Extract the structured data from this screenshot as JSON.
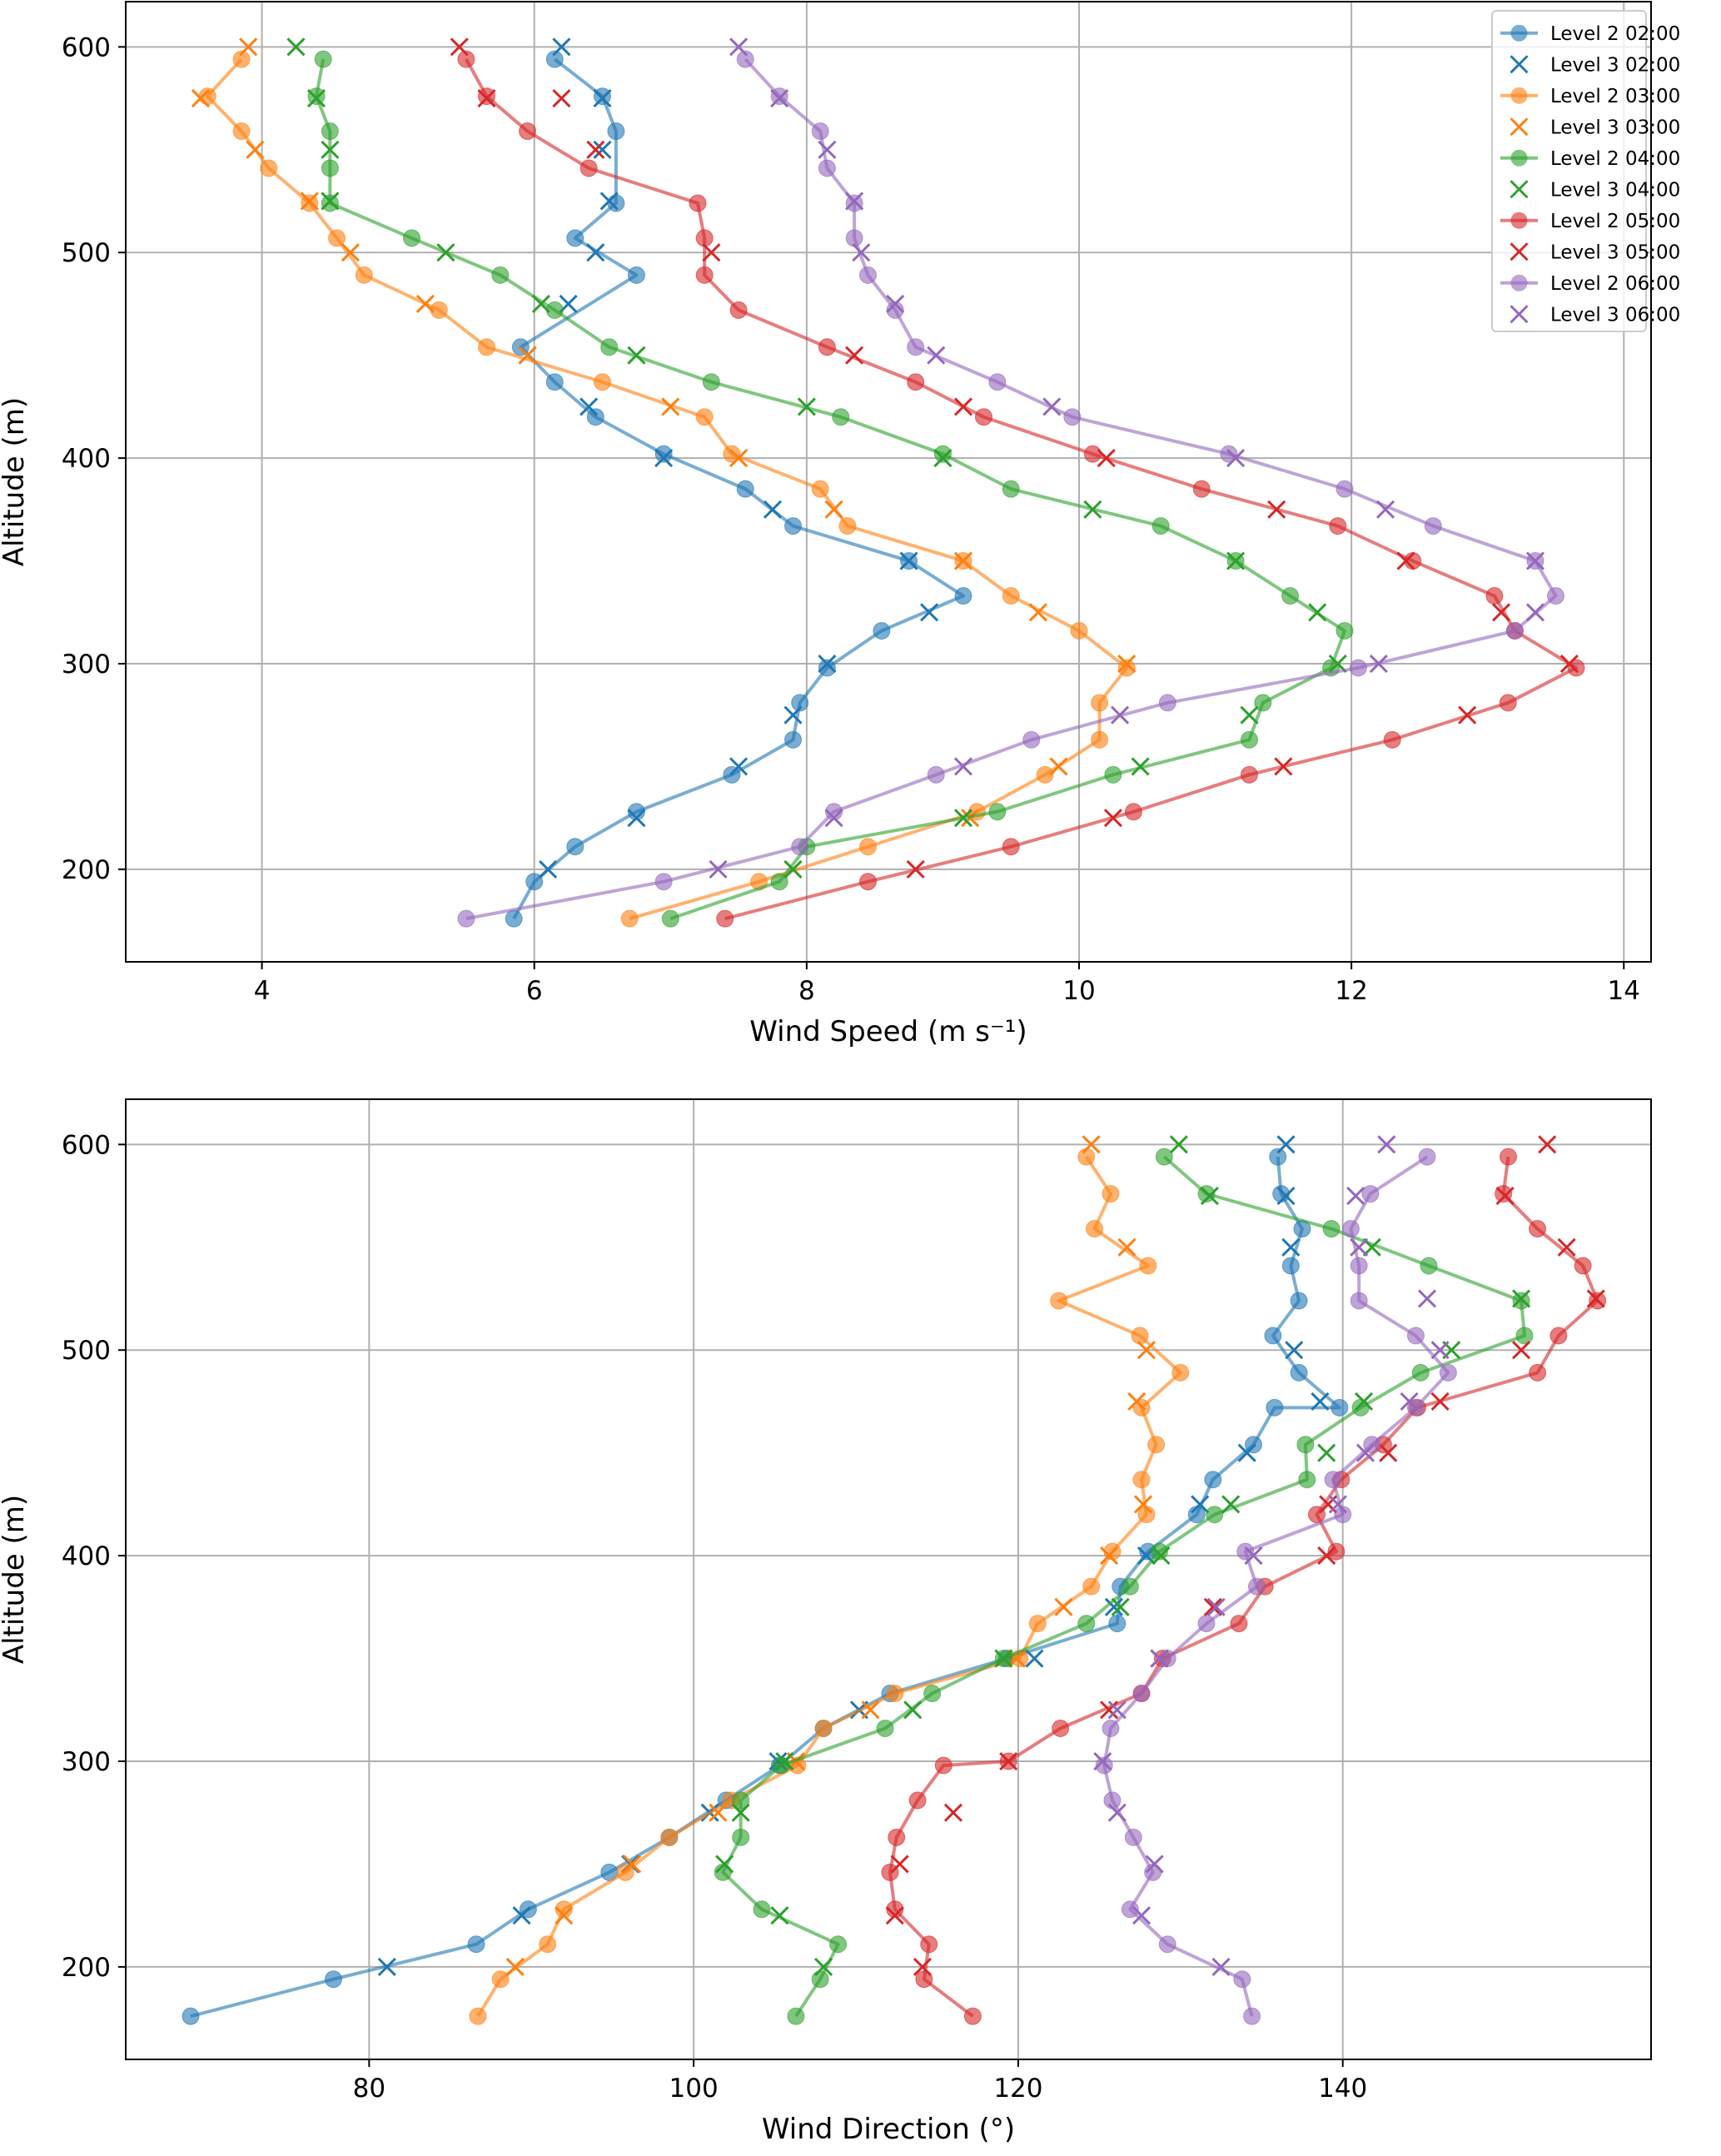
{
  "colors": {
    "02:00": "#1f77b4",
    "03:00": "#ff7f0e",
    "04:00": "#2ca02c",
    "05:00": "#d62728",
    "06:00": "#9467bd"
  },
  "chart_data": [
    {
      "type": "line",
      "xlabel": "Wind Speed (m s⁻¹)",
      "ylabel": "Altitude (m)",
      "xlim": [
        3.0,
        14.2
      ],
      "ylim": [
        155,
        622
      ],
      "xticks": [
        4,
        6,
        8,
        10,
        12,
        14
      ],
      "yticks": [
        200,
        300,
        400,
        500,
        600
      ],
      "grid": true,
      "legend_position": "top-right",
      "series": [
        {
          "name": "Level 2 02:00",
          "time": "02:00",
          "kind": "level2",
          "x": [
            5.85,
            6.0,
            6.3,
            6.75,
            7.45,
            7.9,
            7.95,
            8.15,
            8.55,
            9.15,
            8.75,
            7.9,
            7.55,
            6.95,
            6.45,
            6.15,
            5.9,
            6.75,
            6.3,
            6.6,
            6.6,
            6.5,
            6.15
          ],
          "y": [
            176,
            194,
            211,
            228,
            246,
            263,
            281,
            298,
            316,
            333,
            350,
            367,
            385,
            402,
            420,
            437,
            454,
            489,
            507,
            524,
            559,
            576,
            594
          ]
        },
        {
          "name": "Level 3 02:00",
          "time": "02:00",
          "kind": "level3",
          "x": [
            6.1,
            6.75,
            7.5,
            7.9,
            8.15,
            8.9,
            8.75,
            7.75,
            6.95,
            6.4,
            5.95,
            6.25,
            6.45,
            6.55,
            6.5,
            6.5,
            6.2
          ],
          "y": [
            200,
            225,
            250,
            275,
            300,
            325,
            350,
            375,
            400,
            425,
            450,
            475,
            500,
            525,
            550,
            575,
            600
          ]
        },
        {
          "name": "Level 2 03:00",
          "time": "03:00",
          "kind": "level2",
          "x": [
            6.7,
            7.65,
            8.45,
            9.25,
            9.75,
            10.15,
            10.15,
            10.35,
            10.0,
            9.5,
            9.15,
            8.3,
            8.1,
            7.45,
            7.25,
            6.5,
            5.65,
            5.3,
            4.75,
            4.55,
            4.35,
            4.05,
            3.85,
            3.6,
            3.85
          ],
          "y": [
            176,
            194,
            211,
            228,
            246,
            263,
            281,
            298,
            316,
            333,
            350,
            367,
            385,
            402,
            420,
            437,
            454,
            472,
            489,
            507,
            524,
            541,
            559,
            576,
            594
          ]
        },
        {
          "name": "Level 3 03:00",
          "time": "03:00",
          "kind": "level3",
          "x": [
            7.9,
            9.2,
            9.85,
            10.35,
            9.7,
            9.15,
            8.2,
            7.5,
            7.0,
            5.95,
            5.2,
            4.65,
            4.35,
            3.95,
            3.55,
            3.9
          ],
          "y": [
            200,
            225,
            250,
            300,
            325,
            350,
            375,
            400,
            425,
            450,
            475,
            500,
            525,
            550,
            575,
            600
          ]
        },
        {
          "name": "Level 2 04:00",
          "time": "04:00",
          "kind": "level2",
          "x": [
            7.0,
            7.8,
            8.0,
            9.4,
            10.25,
            11.25,
            11.35,
            11.85,
            11.95,
            11.55,
            11.15,
            10.6,
            9.5,
            9.0,
            8.25,
            7.3,
            6.55,
            6.15,
            5.75,
            5.1,
            4.5,
            4.5,
            4.5,
            4.4,
            4.45
          ],
          "y": [
            176,
            194,
            211,
            228,
            246,
            263,
            281,
            298,
            316,
            333,
            350,
            367,
            385,
            402,
            420,
            437,
            454,
            472,
            489,
            507,
            524,
            541,
            559,
            576,
            594
          ]
        },
        {
          "name": "Level 3 04:00",
          "time": "04:00",
          "kind": "level3",
          "x": [
            7.9,
            9.15,
            10.45,
            11.25,
            11.9,
            11.75,
            11.15,
            10.1,
            9.0,
            8.0,
            6.75,
            6.05,
            5.35,
            4.5,
            4.5,
            4.4,
            4.25
          ],
          "y": [
            200,
            225,
            250,
            275,
            300,
            325,
            350,
            375,
            400,
            425,
            450,
            475,
            500,
            525,
            550,
            575,
            600
          ]
        },
        {
          "name": "Level 2 05:00",
          "time": "05:00",
          "kind": "level2",
          "x": [
            7.4,
            8.45,
            9.5,
            10.4,
            11.25,
            12.3,
            13.15,
            13.65,
            13.2,
            13.05,
            12.45,
            11.9,
            10.9,
            10.1,
            9.3,
            8.8,
            8.15,
            7.5,
            7.25,
            7.25,
            7.2,
            6.4,
            5.95,
            5.65,
            5.5
          ],
          "y": [
            176,
            194,
            211,
            228,
            246,
            263,
            281,
            298,
            316,
            333,
            350,
            367,
            385,
            402,
            420,
            437,
            454,
            472,
            489,
            507,
            524,
            541,
            559,
            576,
            594
          ]
        },
        {
          "name": "Level 3 05:00",
          "time": "05:00",
          "kind": "level3",
          "x": [
            8.8,
            10.25,
            11.5,
            12.85,
            13.6,
            13.1,
            12.4,
            11.45,
            10.2,
            9.15,
            8.35,
            7.3,
            6.45,
            6.2,
            5.65,
            5.45
          ],
          "y": [
            200,
            225,
            250,
            275,
            300,
            325,
            350,
            375,
            400,
            425,
            450,
            500,
            550,
            575,
            575,
            600
          ]
        },
        {
          "name": "Level 2 06:00",
          "time": "06:00",
          "kind": "level2",
          "x": [
            5.5,
            6.95,
            7.95,
            8.2,
            8.95,
            9.65,
            10.65,
            12.05,
            13.2,
            13.5,
            13.35,
            12.6,
            11.95,
            11.1,
            9.95,
            9.4,
            8.8,
            8.65,
            8.45,
            8.35,
            8.35,
            8.15,
            8.1,
            7.8,
            7.55
          ],
          "y": [
            176,
            194,
            211,
            228,
            246,
            263,
            281,
            298,
            316,
            333,
            350,
            367,
            385,
            402,
            420,
            437,
            454,
            472,
            489,
            507,
            524,
            541,
            559,
            576,
            594
          ]
        },
        {
          "name": "Level 3 06:00",
          "time": "06:00",
          "kind": "level3",
          "x": [
            7.35,
            8.2,
            9.15,
            10.3,
            12.2,
            13.35,
            13.35,
            12.25,
            11.15,
            9.8,
            8.95,
            8.65,
            8.4,
            8.35,
            8.15,
            7.8,
            7.5
          ],
          "y": [
            200,
            225,
            250,
            275,
            300,
            325,
            350,
            375,
            400,
            425,
            450,
            475,
            500,
            525,
            550,
            575,
            600
          ]
        }
      ]
    },
    {
      "type": "line",
      "xlabel": "Wind Direction (°)",
      "ylabel": "Altitude (m)",
      "xlim": [
        65.0,
        159.0
      ],
      "ylim": [
        155,
        622
      ],
      "xticks": [
        80,
        100,
        120,
        140
      ],
      "yticks": [
        200,
        300,
        400,
        500,
        600
      ],
      "grid": true,
      "series": [
        {
          "name": "Level 2 02:00",
          "time": "02:00",
          "kind": "level2",
          "x": [
            69,
            77.8,
            86.6,
            89.8,
            94.8,
            98.5,
            102.0,
            105.3,
            108.0,
            112.1,
            119.3,
            126.1,
            126.3,
            128.0,
            131.0,
            132.0,
            134.5,
            135.8,
            139.8,
            137.3,
            135.7,
            137.3,
            136.8,
            137.5,
            136.2,
            136.0
          ],
          "y": [
            176,
            194,
            211,
            228,
            246,
            263,
            281,
            298,
            316,
            333,
            350,
            367,
            385,
            402,
            420,
            437,
            454,
            472,
            472,
            489,
            507,
            524,
            541,
            559,
            576,
            594
          ]
        },
        {
          "name": "Level 3 02:00",
          "time": "02:00",
          "kind": "level3",
          "x": [
            81.1,
            89.4,
            96.1,
            101.0,
            105.2,
            110.2,
            121.0,
            125.9,
            127.9,
            131.2,
            134.1,
            138.6,
            137.0,
            136.8,
            136.5,
            136.5
          ],
          "y": [
            200,
            225,
            250,
            275,
            300,
            325,
            350,
            375,
            400,
            425,
            450,
            475,
            500,
            550,
            575,
            600
          ]
        },
        {
          "name": "Level 2 03:00",
          "time": "03:00",
          "kind": "level2",
          "x": [
            86.7,
            88.1,
            91.0,
            92.0,
            95.8,
            98.5,
            102.3,
            106.4,
            108.0,
            112.4,
            120.1,
            121.2,
            124.5,
            125.8,
            127.9,
            127.6,
            128.5,
            127.6,
            130.0,
            127.5,
            122.5,
            128.0,
            124.7,
            125.7,
            124.2
          ],
          "y": [
            176,
            194,
            211,
            228,
            246,
            263,
            281,
            298,
            316,
            333,
            350,
            367,
            385,
            402,
            420,
            437,
            454,
            472,
            489,
            507,
            524,
            541,
            559,
            576,
            594
          ]
        },
        {
          "name": "Level 3 03:00",
          "time": "03:00",
          "kind": "level3",
          "x": [
            89.0,
            92.0,
            96.2,
            101.5,
            106.3,
            110.9,
            119.9,
            122.8,
            125.6,
            127.7,
            127.3,
            127.9,
            126.7,
            124.5
          ],
          "y": [
            200,
            225,
            250,
            275,
            300,
            325,
            350,
            375,
            400,
            425,
            475,
            500,
            550,
            600
          ]
        },
        {
          "name": "Level 2 04:00",
          "time": "04:00",
          "kind": "level2",
          "x": [
            106.3,
            107.8,
            108.9,
            104.2,
            101.8,
            102.9,
            102.9,
            105.4,
            111.8,
            114.7,
            119.1,
            124.2,
            126.9,
            128.7,
            132.1,
            137.8,
            137.7,
            141.1,
            144.8,
            151.2,
            151.0,
            145.3,
            139.3,
            131.6,
            129.0
          ],
          "y": [
            176,
            194,
            211,
            228,
            246,
            263,
            281,
            298,
            316,
            333,
            350,
            367,
            385,
            402,
            420,
            437,
            454,
            472,
            489,
            507,
            524,
            541,
            559,
            576,
            594
          ]
        },
        {
          "name": "Level 3 04:00",
          "time": "04:00",
          "kind": "level3",
          "x": [
            108.0,
            105.3,
            101.9,
            102.9,
            105.6,
            113.5,
            119.1,
            126.3,
            128.8,
            133.1,
            139.0,
            141.3,
            146.7,
            151.0,
            141.8,
            131.8,
            129.9
          ],
          "y": [
            200,
            225,
            250,
            275,
            300,
            325,
            350,
            375,
            400,
            425,
            450,
            475,
            500,
            525,
            550,
            575,
            600
          ]
        },
        {
          "name": "Level 2 05:00",
          "time": "05:00",
          "kind": "level2",
          "x": [
            117.2,
            114.2,
            114.5,
            112.4,
            112.1,
            112.5,
            113.8,
            115.4,
            119.4,
            122.6,
            127.6,
            128.9,
            133.6,
            135.2,
            139.6,
            138.4,
            139.9,
            142.5,
            144.6,
            152.0,
            153.3,
            155.7,
            154.8,
            152.0,
            149.9,
            150.2
          ],
          "y": [
            176,
            194,
            211,
            228,
            246,
            263,
            281,
            298,
            300,
            316,
            333,
            350,
            367,
            385,
            402,
            420,
            437,
            454,
            472,
            489,
            507,
            524,
            541,
            559,
            576,
            594
          ]
        },
        {
          "name": "Level 3 05:00",
          "time": "05:00",
          "kind": "level3",
          "x": [
            114.1,
            112.4,
            112.7,
            116.0,
            119.4,
            125.6,
            128.7,
            132.0,
            139.0,
            139.1,
            142.8,
            146.0,
            151.0,
            155.6,
            153.8,
            150.0,
            152.6
          ],
          "y": [
            200,
            225,
            250,
            275,
            300,
            325,
            350,
            375,
            400,
            425,
            450,
            475,
            500,
            525,
            550,
            575,
            600
          ]
        },
        {
          "name": "Level 2 06:00",
          "time": "06:00",
          "kind": "level2",
          "x": [
            134.4,
            133.8,
            129.2,
            126.9,
            128.3,
            127.1,
            125.8,
            125.3,
            125.7,
            127.6,
            129.2,
            131.6,
            134.7,
            134.0,
            140.0,
            139.4,
            141.8,
            144.5,
            146.5,
            144.5,
            141.0,
            141.0,
            140.5,
            141.7,
            145.2
          ],
          "y": [
            176,
            194,
            211,
            228,
            246,
            263,
            281,
            298,
            316,
            333,
            350,
            367,
            385,
            402,
            420,
            437,
            454,
            472,
            489,
            507,
            524,
            541,
            559,
            576,
            594
          ]
        },
        {
          "name": "Level 3 06:00",
          "time": "06:00",
          "kind": "level3",
          "x": [
            132.5,
            127.6,
            128.4,
            126.1,
            125.2,
            126.1,
            128.7,
            132.2,
            134.5,
            139.7,
            141.4,
            144.1,
            146.0,
            145.2,
            141.0,
            140.8,
            142.7
          ],
          "y": [
            200,
            225,
            250,
            275,
            300,
            325,
            350,
            375,
            400,
            425,
            450,
            475,
            500,
            525,
            550,
            575,
            600
          ]
        }
      ]
    }
  ]
}
